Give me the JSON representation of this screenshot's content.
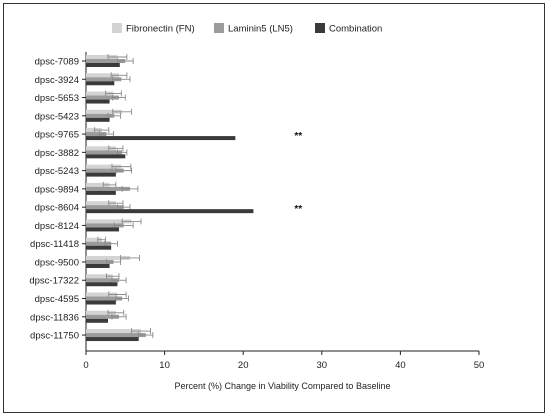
{
  "chart_data": {
    "type": "bar",
    "orientation": "horizontal",
    "categories": [
      "dpsc-7089",
      "dpsc-3924",
      "dpsc-5653",
      "dpsc-5423",
      "dpsc-9765",
      "dpsc-3882",
      "dpsc-5243",
      "dpsc-9894",
      "dpsc-8604",
      "dpsc-8124",
      "dpsc-11418",
      "dpsc-9500",
      "dpsc-17322",
      "dpsc-4595",
      "dpsc-11836",
      "dpsc-11750"
    ],
    "series": [
      {
        "name": "Fibronectin (FN)",
        "color": "#d3d3d3",
        "values": [
          4.0,
          4.2,
          3.5,
          4.6,
          2.0,
          3.8,
          4.5,
          3.0,
          3.8,
          5.8,
          2.0,
          5.6,
          3.4,
          4.0,
          3.8,
          7.0
        ],
        "errors": [
          1.2,
          1.0,
          1.0,
          1.2,
          0.9,
          0.9,
          1.2,
          0.8,
          0.9,
          1.2,
          0.5,
          1.2,
          0.8,
          1.1,
          1.0,
          1.2
        ]
      },
      {
        "name": "Laminin5 (LN5)",
        "color": "#9b9b9b",
        "values": [
          5.0,
          4.5,
          4.2,
          3.6,
          2.6,
          4.6,
          4.8,
          5.6,
          4.8,
          4.8,
          3.2,
          3.5,
          4.2,
          4.6,
          4.2,
          7.6
        ],
        "errors": [
          1.0,
          1.1,
          0.8,
          0.8,
          0.9,
          0.6,
          1.0,
          1.0,
          0.8,
          1.2,
          0.8,
          0.9,
          0.9,
          0.8,
          0.9,
          0.9
        ]
      },
      {
        "name": "Combination",
        "color": "#3a3a3a",
        "values": [
          4.3,
          3.6,
          3.0,
          3.0,
          19.0,
          5.0,
          3.8,
          3.8,
          21.3,
          4.2,
          3.2,
          3.0,
          4.0,
          3.8,
          2.8,
          6.7
        ],
        "errors": [
          0,
          0,
          0,
          0,
          0,
          0,
          0,
          0,
          0,
          0,
          0,
          0,
          0,
          0,
          0,
          0
        ]
      }
    ],
    "annotations": [
      {
        "category": "dpsc-9765",
        "text": "**",
        "x": 27
      },
      {
        "category": "dpsc-8604",
        "text": "**",
        "x": 27
      }
    ],
    "xlabel": "Percent (%) Change in Viability Compared to Baseline",
    "ylabel": "",
    "xlim": [
      0,
      50
    ],
    "xticks": [
      0,
      10,
      20,
      30,
      40,
      50
    ],
    "grid": false,
    "legend_position": "top"
  }
}
